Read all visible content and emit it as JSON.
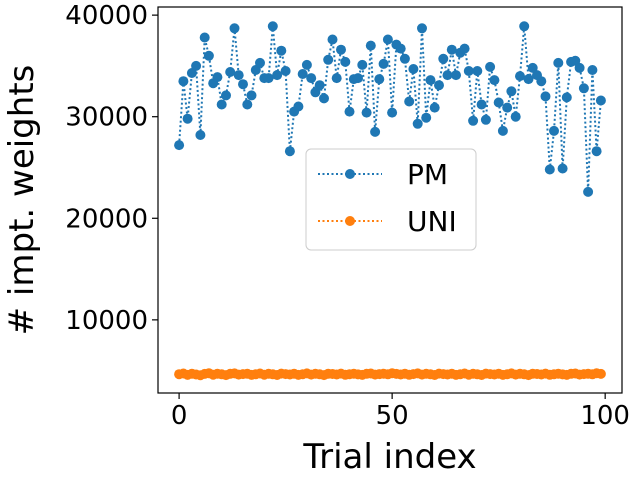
{
  "chart_data": {
    "type": "line",
    "xlabel": "Trial index",
    "ylabel": "# impt. weights",
    "xlim": [
      -4.95,
      103.95
    ],
    "ylim": [
      2800,
      40800
    ],
    "xticks": [
      0,
      50,
      100
    ],
    "yticks": [
      10000,
      20000,
      30000,
      40000
    ],
    "grid": false,
    "legend": {
      "placement": "center"
    },
    "series": [
      {
        "name": "PM",
        "color": "#1f77b4",
        "marker": "circle",
        "linestyle": "dotted",
        "x": [
          0,
          1,
          2,
          3,
          4,
          5,
          6,
          7,
          8,
          9,
          10,
          11,
          12,
          13,
          14,
          15,
          16,
          17,
          18,
          19,
          20,
          21,
          22,
          23,
          24,
          25,
          26,
          27,
          28,
          29,
          30,
          31,
          32,
          33,
          34,
          35,
          36,
          37,
          38,
          39,
          40,
          41,
          42,
          43,
          44,
          45,
          46,
          47,
          48,
          49,
          50,
          51,
          52,
          53,
          54,
          55,
          56,
          57,
          58,
          59,
          60,
          61,
          62,
          63,
          64,
          65,
          66,
          67,
          68,
          69,
          70,
          71,
          72,
          73,
          74,
          75,
          76,
          77,
          78,
          79,
          80,
          81,
          82,
          83,
          84,
          85,
          86,
          87,
          88,
          89,
          90,
          91,
          92,
          93,
          94,
          95,
          96,
          97,
          98,
          99
        ],
        "values": [
          27200,
          33500,
          29800,
          34300,
          35000,
          28200,
          37800,
          36000,
          33300,
          33900,
          31200,
          32100,
          34400,
          38700,
          34100,
          33200,
          31200,
          32100,
          34600,
          35300,
          33800,
          33800,
          38900,
          34100,
          36500,
          34500,
          26600,
          30500,
          31000,
          34200,
          35100,
          33800,
          32400,
          33100,
          31800,
          35600,
          37600,
          33800,
          36600,
          35400,
          30500,
          33700,
          33800,
          35100,
          30400,
          37000,
          28500,
          33700,
          35200,
          37600,
          30400,
          37100,
          36700,
          35700,
          31500,
          34700,
          29300,
          38700,
          29900,
          33600,
          30900,
          33100,
          35700,
          34100,
          36600,
          34100,
          36300,
          36700,
          34500,
          29600,
          34500,
          31200,
          29700,
          34900,
          33600,
          31400,
          28600,
          30900,
          32500,
          30000,
          34000,
          38900,
          33700,
          34800,
          34100,
          33500,
          32000,
          24800,
          28600,
          35300,
          24900,
          31900,
          35400,
          35500,
          34800,
          32800,
          22600,
          34600,
          26600,
          31600
        ]
      },
      {
        "name": "UNI",
        "color": "#ff7f0e",
        "marker": "circle",
        "linestyle": "dotted",
        "x": [
          0,
          1,
          2,
          3,
          4,
          5,
          6,
          7,
          8,
          9,
          10,
          11,
          12,
          13,
          14,
          15,
          16,
          17,
          18,
          19,
          20,
          21,
          22,
          23,
          24,
          25,
          26,
          27,
          28,
          29,
          30,
          31,
          32,
          33,
          34,
          35,
          36,
          37,
          38,
          39,
          40,
          41,
          42,
          43,
          44,
          45,
          46,
          47,
          48,
          49,
          50,
          51,
          52,
          53,
          54,
          55,
          56,
          57,
          58,
          59,
          60,
          61,
          62,
          63,
          64,
          65,
          66,
          67,
          68,
          69,
          70,
          71,
          72,
          73,
          74,
          75,
          76,
          77,
          78,
          79,
          80,
          81,
          82,
          83,
          84,
          85,
          86,
          87,
          88,
          89,
          90,
          91,
          92,
          93,
          94,
          95,
          96,
          97,
          98,
          99
        ],
        "values": [
          4650,
          4720,
          4580,
          4700,
          4620,
          4550,
          4680,
          4750,
          4600,
          4700,
          4640,
          4560,
          4690,
          4730,
          4610,
          4660,
          4700,
          4580,
          4650,
          4720,
          4600,
          4690,
          4640,
          4570,
          4710,
          4660,
          4620,
          4700,
          4580,
          4650,
          4730,
          4610,
          4690,
          4640,
          4560,
          4700,
          4670,
          4620,
          4710,
          4590,
          4650,
          4700,
          4630,
          4580,
          4690,
          4720,
          4610,
          4660,
          4700,
          4640,
          4750,
          4680,
          4620,
          4700,
          4590,
          4660,
          4730,
          4610,
          4690,
          4640,
          4570,
          4710,
          4660,
          4620,
          4700,
          4580,
          4650,
          4720,
          4600,
          4690,
          4640,
          4570,
          4710,
          4660,
          4620,
          4700,
          4580,
          4650,
          4730,
          4610,
          4690,
          4640,
          4560,
          4700,
          4670,
          4620,
          4710,
          4590,
          4650,
          4700,
          4630,
          4580,
          4690,
          4720,
          4610,
          4660,
          4700,
          4640,
          4750,
          4680
        ]
      }
    ]
  }
}
